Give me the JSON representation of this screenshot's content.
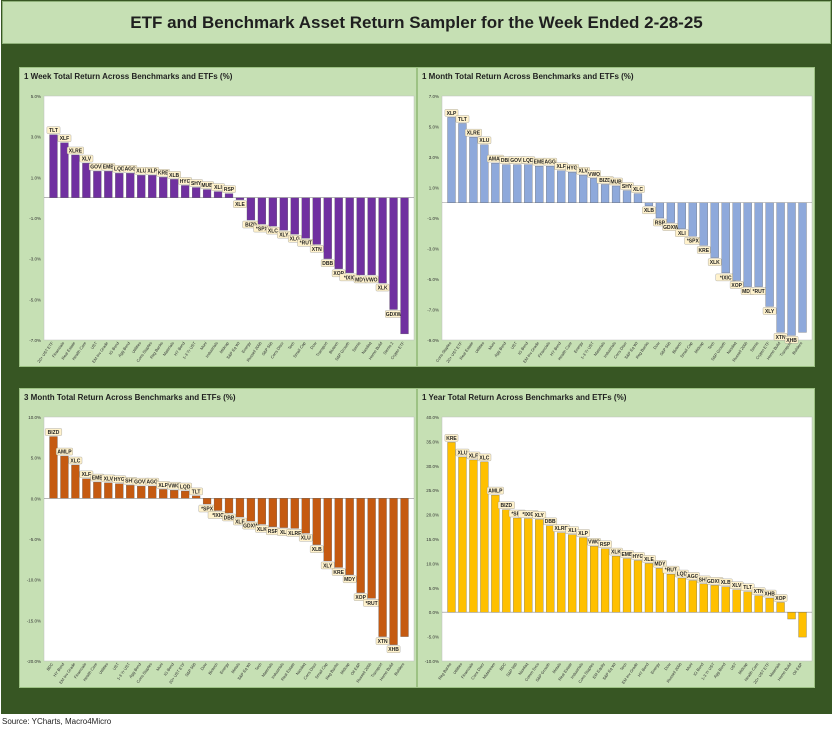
{
  "header": {
    "title": "ETF and Benchmark Asset Return Sampler for the Week Ended 2-28-25"
  },
  "source": "Source: YCharts, Macro4Micro",
  "colors": {
    "frame": "#375623",
    "panel": "#c6e0b4",
    "week": "#7030a0",
    "month": "#8ea9db",
    "three_month": "#c55a11",
    "year": "#ffc000"
  },
  "chart_data": [
    {
      "type": "bar",
      "title": "1 Week Total Return Across Benchmarks and ETFs (%)",
      "ylim": [
        -7,
        5
      ],
      "yticks": [
        -7,
        -5,
        -3,
        -1,
        1,
        3,
        5
      ],
      "ytick_labels": [
        "-7.0%",
        "-5.0%",
        "-3.0%",
        "-1.0%",
        "1.0%",
        "3.0%",
        "5.0%"
      ],
      "color": "#7030a0",
      "categories": [
        "20+ UST ETF",
        "Financials",
        "Real Estate",
        "Health Care",
        "UST",
        "EM Inv Grade",
        "IG Bond",
        "Agg Bond",
        "Utilities",
        "Cons Staples",
        "Reg Banks",
        "Materials",
        "HY Bond",
        "1-3 Yr UST",
        "Muni",
        "Industrials",
        "Midcap",
        "S&P Eq Wt",
        "Energy",
        "Russell 2000",
        "S&P 500",
        "Cons Discr",
        "Tech",
        "Small Cap",
        "Dow",
        "Transport",
        "Biotech",
        "S&P Growth",
        "Semis",
        "Nasdaq",
        "Home Build",
        "Semis 2",
        "Crypto ETF"
      ],
      "labels": [
        "TLT",
        "XLF",
        "XLRE",
        "XLV",
        "GOVT",
        "EMB",
        "LQD",
        "AGG",
        "XLU",
        "XLP",
        "KRE",
        "XLB",
        "HYG",
        "SHY",
        "MUB",
        "XLI",
        "RSP",
        "XLE",
        "BIZD",
        "*SPX",
        "XLC",
        "XLY",
        "XLG",
        "*RUT",
        "XTN",
        "DBB",
        "XOP",
        "*IXIC",
        "MDY",
        "VWO",
        "XLK",
        "GDXW",
        ""
      ],
      "values": [
        3.1,
        2.7,
        2.1,
        1.7,
        1.3,
        1.3,
        1.2,
        1.2,
        1.1,
        1.1,
        1.0,
        0.9,
        0.6,
        0.5,
        0.4,
        0.3,
        0.2,
        -0.1,
        -1.1,
        -1.3,
        -1.4,
        -1.6,
        -1.8,
        -2.0,
        -2.3,
        -3.0,
        -3.5,
        -3.7,
        -3.8,
        -3.8,
        -4.2,
        -5.5,
        -6.7
      ]
    },
    {
      "type": "bar",
      "title": "1 Month Total Return Across Benchmarks and ETFs (%)",
      "ylim": [
        -9,
        7
      ],
      "yticks": [
        -9,
        -7,
        -5,
        -3,
        -1,
        1,
        3,
        5,
        7
      ],
      "ytick_labels": [
        "-9.0%",
        "-7.0%",
        "-5.0%",
        "-3.0%",
        "-1.0%",
        "1.0%",
        "3.0%",
        "5.0%",
        "7.0%"
      ],
      "color": "#8ea9db",
      "categories": [
        "Cons Staples",
        "20+ UST ETF",
        "Real Estate",
        "Utilities",
        "Muni",
        "Agg Bond",
        "UST",
        "IG Bond",
        "EM Inv Grade",
        "Financials",
        "HY Bond",
        "Health Care",
        "Energy",
        "1-3 Yr UST",
        "Materials",
        "Industrials",
        "Cons Discr",
        "S&P Eq Wt",
        "Reg Banks",
        "Dow",
        "S&P 500",
        "Biotech",
        "Small Cap",
        "Midcap",
        "Tech",
        "S&P Growth",
        "Nasdaq",
        "Russell 2000",
        "Semis",
        "Crypto ETF",
        "Home Build",
        "Transport",
        "Builders"
      ],
      "labels": [
        "XLP",
        "TLT",
        "XLRE",
        "XLU",
        "AMAT",
        "DBB",
        "GOVT",
        "LQD",
        "EMB",
        "AGG",
        "XLF",
        "HYG",
        "XLV",
        "VWO",
        "BIZD",
        "MUB",
        "SHY",
        "XLC",
        "XLB",
        "RSP",
        "GDXW",
        "XLI",
        "*SPX",
        "KRE",
        "XLK",
        "*IXIC",
        "XOP",
        "MDY",
        "*RUT",
        "XLY",
        "XTN",
        "XHB",
        ""
      ],
      "values": [
        5.6,
        5.2,
        4.3,
        3.8,
        2.6,
        2.5,
        2.5,
        2.5,
        2.4,
        2.4,
        2.1,
        2.0,
        1.8,
        1.6,
        1.2,
        1.1,
        0.8,
        0.6,
        -0.2,
        -1.0,
        -1.3,
        -1.7,
        -2.2,
        -2.8,
        -3.6,
        -4.6,
        -5.1,
        -5.5,
        -5.5,
        -6.8,
        -8.5,
        -8.7,
        -8.5
      ]
    },
    {
      "type": "bar",
      "title": "3 Month Total Return Across Benchmarks and ETFs (%)",
      "ylim": [
        -20,
        10
      ],
      "yticks": [
        -20,
        -15,
        -10,
        -5,
        0,
        5,
        10
      ],
      "ytick_labels": [
        "-20.0%",
        "-15.0%",
        "-10.0%",
        "-5.0%",
        "0.0%",
        "5.0%",
        "10.0%"
      ],
      "color": "#c55a11",
      "categories": [
        "BDC",
        "HY Bond",
        "EM Inv Grade",
        "Financials",
        "Health Care",
        "Utilities",
        "UST",
        "1-3 Yr UST",
        "Agg Bond",
        "Cons Staples",
        "Muni",
        "IG Bond",
        "20+ UST ETF",
        "S&P 500",
        "Dow",
        "Biotech",
        "Energy",
        "Metals",
        "S&P Eq Wt",
        "Tech",
        "Materials",
        "Industrials",
        "Real Estate",
        "Nasdaq",
        "Cons Discr",
        "Small Cap",
        "Reg Banks",
        "Midcap",
        "Oil E&P",
        "Russell 2000",
        "Transport",
        "Home Build",
        "Builders"
      ],
      "labels": [
        "BIZD",
        "AMLP",
        "XLC",
        "XLF",
        "EMB",
        "XLV",
        "HYG",
        "SHY",
        "GOVT",
        "AGG",
        "XLP",
        "VWO",
        "LQD",
        "TLT",
        "*SPX",
        "*IXIC",
        "DBB",
        "XLE",
        "GDXW",
        "XLK",
        "RSP",
        "XLI",
        "XLRE",
        "XLU",
        "XLB",
        "XLY",
        "KRE",
        "MDY",
        "XOP",
        "*RUT",
        "XTN",
        "XHB",
        ""
      ],
      "values": [
        7.6,
        5.2,
        4.1,
        2.4,
        2.0,
        1.9,
        1.8,
        1.6,
        1.5,
        1.5,
        1.1,
        1.0,
        0.9,
        0.3,
        -0.7,
        -1.5,
        -1.8,
        -2.3,
        -2.8,
        -3.2,
        -3.5,
        -3.6,
        -3.7,
        -4.3,
        -5.7,
        -7.7,
        -8.5,
        -9.4,
        -11.6,
        -12.3,
        -17.0,
        -18.0,
        -17.0
      ]
    },
    {
      "type": "bar",
      "title": "1 Year Total Return Across Benchmarks and ETFs (%)",
      "ylim": [
        -10,
        40
      ],
      "yticks": [
        -10,
        -5,
        0,
        5,
        10,
        15,
        20,
        25,
        30,
        35,
        40
      ],
      "ytick_labels": [
        "-10.0%",
        "-5.0%",
        "0.0%",
        "5.0%",
        "10.0%",
        "15.0%",
        "20.0%",
        "25.0%",
        "30.0%",
        "35.0%",
        "40.0%"
      ],
      "color": "#ffc000",
      "categories": [
        "Reg Banks",
        "Utilities",
        "Financials",
        "Cons Discr",
        "Midstream",
        "BDC",
        "S&P 500",
        "Nasdaq",
        "Comm Svcs",
        "S&P Growth",
        "Metals",
        "Real Estate",
        "Industrials",
        "Cons Staples",
        "EM Equity",
        "S&P Eq Wt",
        "Tech",
        "EM Inv Grade",
        "HY Bond",
        "Energy",
        "Dow",
        "Russell 2000",
        "Muni",
        "IG Bond",
        "1-3 Yr UST",
        "Agg Bond",
        "UST",
        "Midcap",
        "Health Care",
        "20+ UST ETF",
        "Materials",
        "Home Build",
        "Oil E&P"
      ],
      "labels": [
        "KRE",
        "XLU",
        "XLF",
        "XLC",
        "AMLP",
        "BIZD",
        "*SPX",
        "*IXIC",
        "XLY",
        "DBB",
        "XLRE",
        "XLI",
        "XLP",
        "VWO",
        "RSP",
        "XLK",
        "EMB",
        "HYG",
        "XLE",
        "MDY",
        "*RUT",
        "LQD",
        "AGG",
        "SHY",
        "GDXW",
        "XLB",
        "XLV",
        "TLT",
        "XTN",
        "XHB",
        "XOP",
        "",
        ""
      ],
      "values": [
        34.8,
        31.8,
        31.2,
        30.8,
        24.0,
        21.0,
        19.3,
        19.2,
        19.0,
        17.7,
        16.3,
        15.9,
        15.3,
        13.5,
        13.0,
        11.5,
        11.0,
        10.6,
        10.0,
        9.0,
        7.8,
        7.0,
        6.5,
        5.8,
        5.5,
        5.2,
        4.6,
        4.2,
        3.4,
        2.9,
        2.0,
        -1.4,
        -5.1
      ]
    }
  ]
}
